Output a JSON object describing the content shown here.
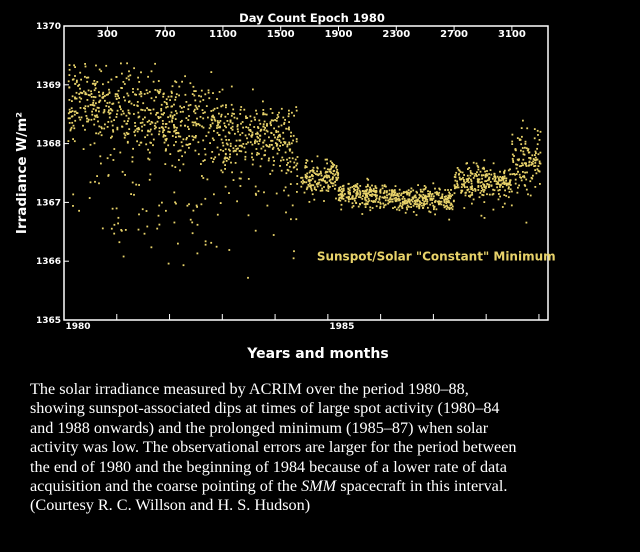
{
  "chart_data": {
    "type": "scatter",
    "title": "",
    "top_axis": {
      "label": "Day Count Epoch 1980",
      "ticks": [
        "300",
        "700",
        "1100",
        "1500",
        "1900",
        "2300",
        "2700",
        "3100"
      ]
    },
    "xlabel": "Years and months",
    "ylabel": "Irradiance W/m²",
    "x_tick_labels": [
      "1980",
      "1985"
    ],
    "y_tick_labels": [
      "1365",
      "1366",
      "1367",
      "1368",
      "1369",
      "1370"
    ],
    "ylim": [
      1365,
      1370
    ],
    "x_day_range": [
      0,
      3350
    ],
    "grid": false,
    "marker_color": "#e8d36a",
    "annotation": {
      "text": "Sunspot/Solar \"Constant\" Minimum",
      "color": "#e8d36a",
      "x_day": 1750,
      "y_value": 1366.08
    },
    "series": [
      {
        "name": "",
        "segments": [
          {
            "x_range": [
              30,
              300
            ],
            "mean": 1368.7,
            "spread": 0.3,
            "dip_chance": 0.15,
            "dip_depth": 1.9
          },
          {
            "x_range": [
              300,
              700
            ],
            "mean": 1368.5,
            "spread": 0.35,
            "dip_chance": 0.18,
            "dip_depth": 2.2
          },
          {
            "x_range": [
              700,
              1100
            ],
            "mean": 1368.35,
            "spread": 0.35,
            "dip_chance": 0.17,
            "dip_depth": 2.1
          },
          {
            "x_range": [
              1100,
              1500
            ],
            "mean": 1368.15,
            "spread": 0.3,
            "dip_chance": 0.13,
            "dip_depth": 1.7
          },
          {
            "x_range": [
              1500,
              1620
            ],
            "mean": 1368.0,
            "spread": 0.35,
            "dip_chance": 0.15,
            "dip_depth": 1.6
          },
          {
            "x_range": [
              1640,
              1900
            ],
            "mean": 1367.45,
            "spread": 0.14,
            "dip_chance": 0.03,
            "dip_depth": 0.5
          },
          {
            "x_range": [
              1900,
              2300
            ],
            "mean": 1367.12,
            "spread": 0.1,
            "dip_chance": 0.02,
            "dip_depth": 0.3
          },
          {
            "x_range": [
              2300,
              2700
            ],
            "mean": 1367.05,
            "spread": 0.1,
            "dip_chance": 0.02,
            "dip_depth": 0.3
          },
          {
            "x_range": [
              2700,
              3100
            ],
            "mean": 1367.35,
            "spread": 0.15,
            "dip_chance": 0.04,
            "dip_depth": 0.5
          },
          {
            "x_range": [
              3100,
              3300
            ],
            "mean": 1367.7,
            "spread": 0.25,
            "dip_chance": 0.08,
            "dip_depth": 0.8
          }
        ]
      }
    ]
  },
  "caption": {
    "line1": "The solar irradiance measured by ACRIM over the period 1980–88,",
    "line2": "showing sunspot-associated dips at times of large spot activity (1980–84",
    "line3": "and 1988 onwards) and the prolonged minimum (1985–87) when solar",
    "line4": "activity was low. The observational errors are larger for the period between",
    "line5": "the end of 1980 and the beginning of 1984 because of a lower rate of data",
    "line6_pre": "acquisition and the coarse pointing of the ",
    "line6_em": "SMM",
    "line6_post": " spacecraft in this interval.",
    "line7": "(Courtesy R. C. Willson and H. S. Hudson)"
  }
}
